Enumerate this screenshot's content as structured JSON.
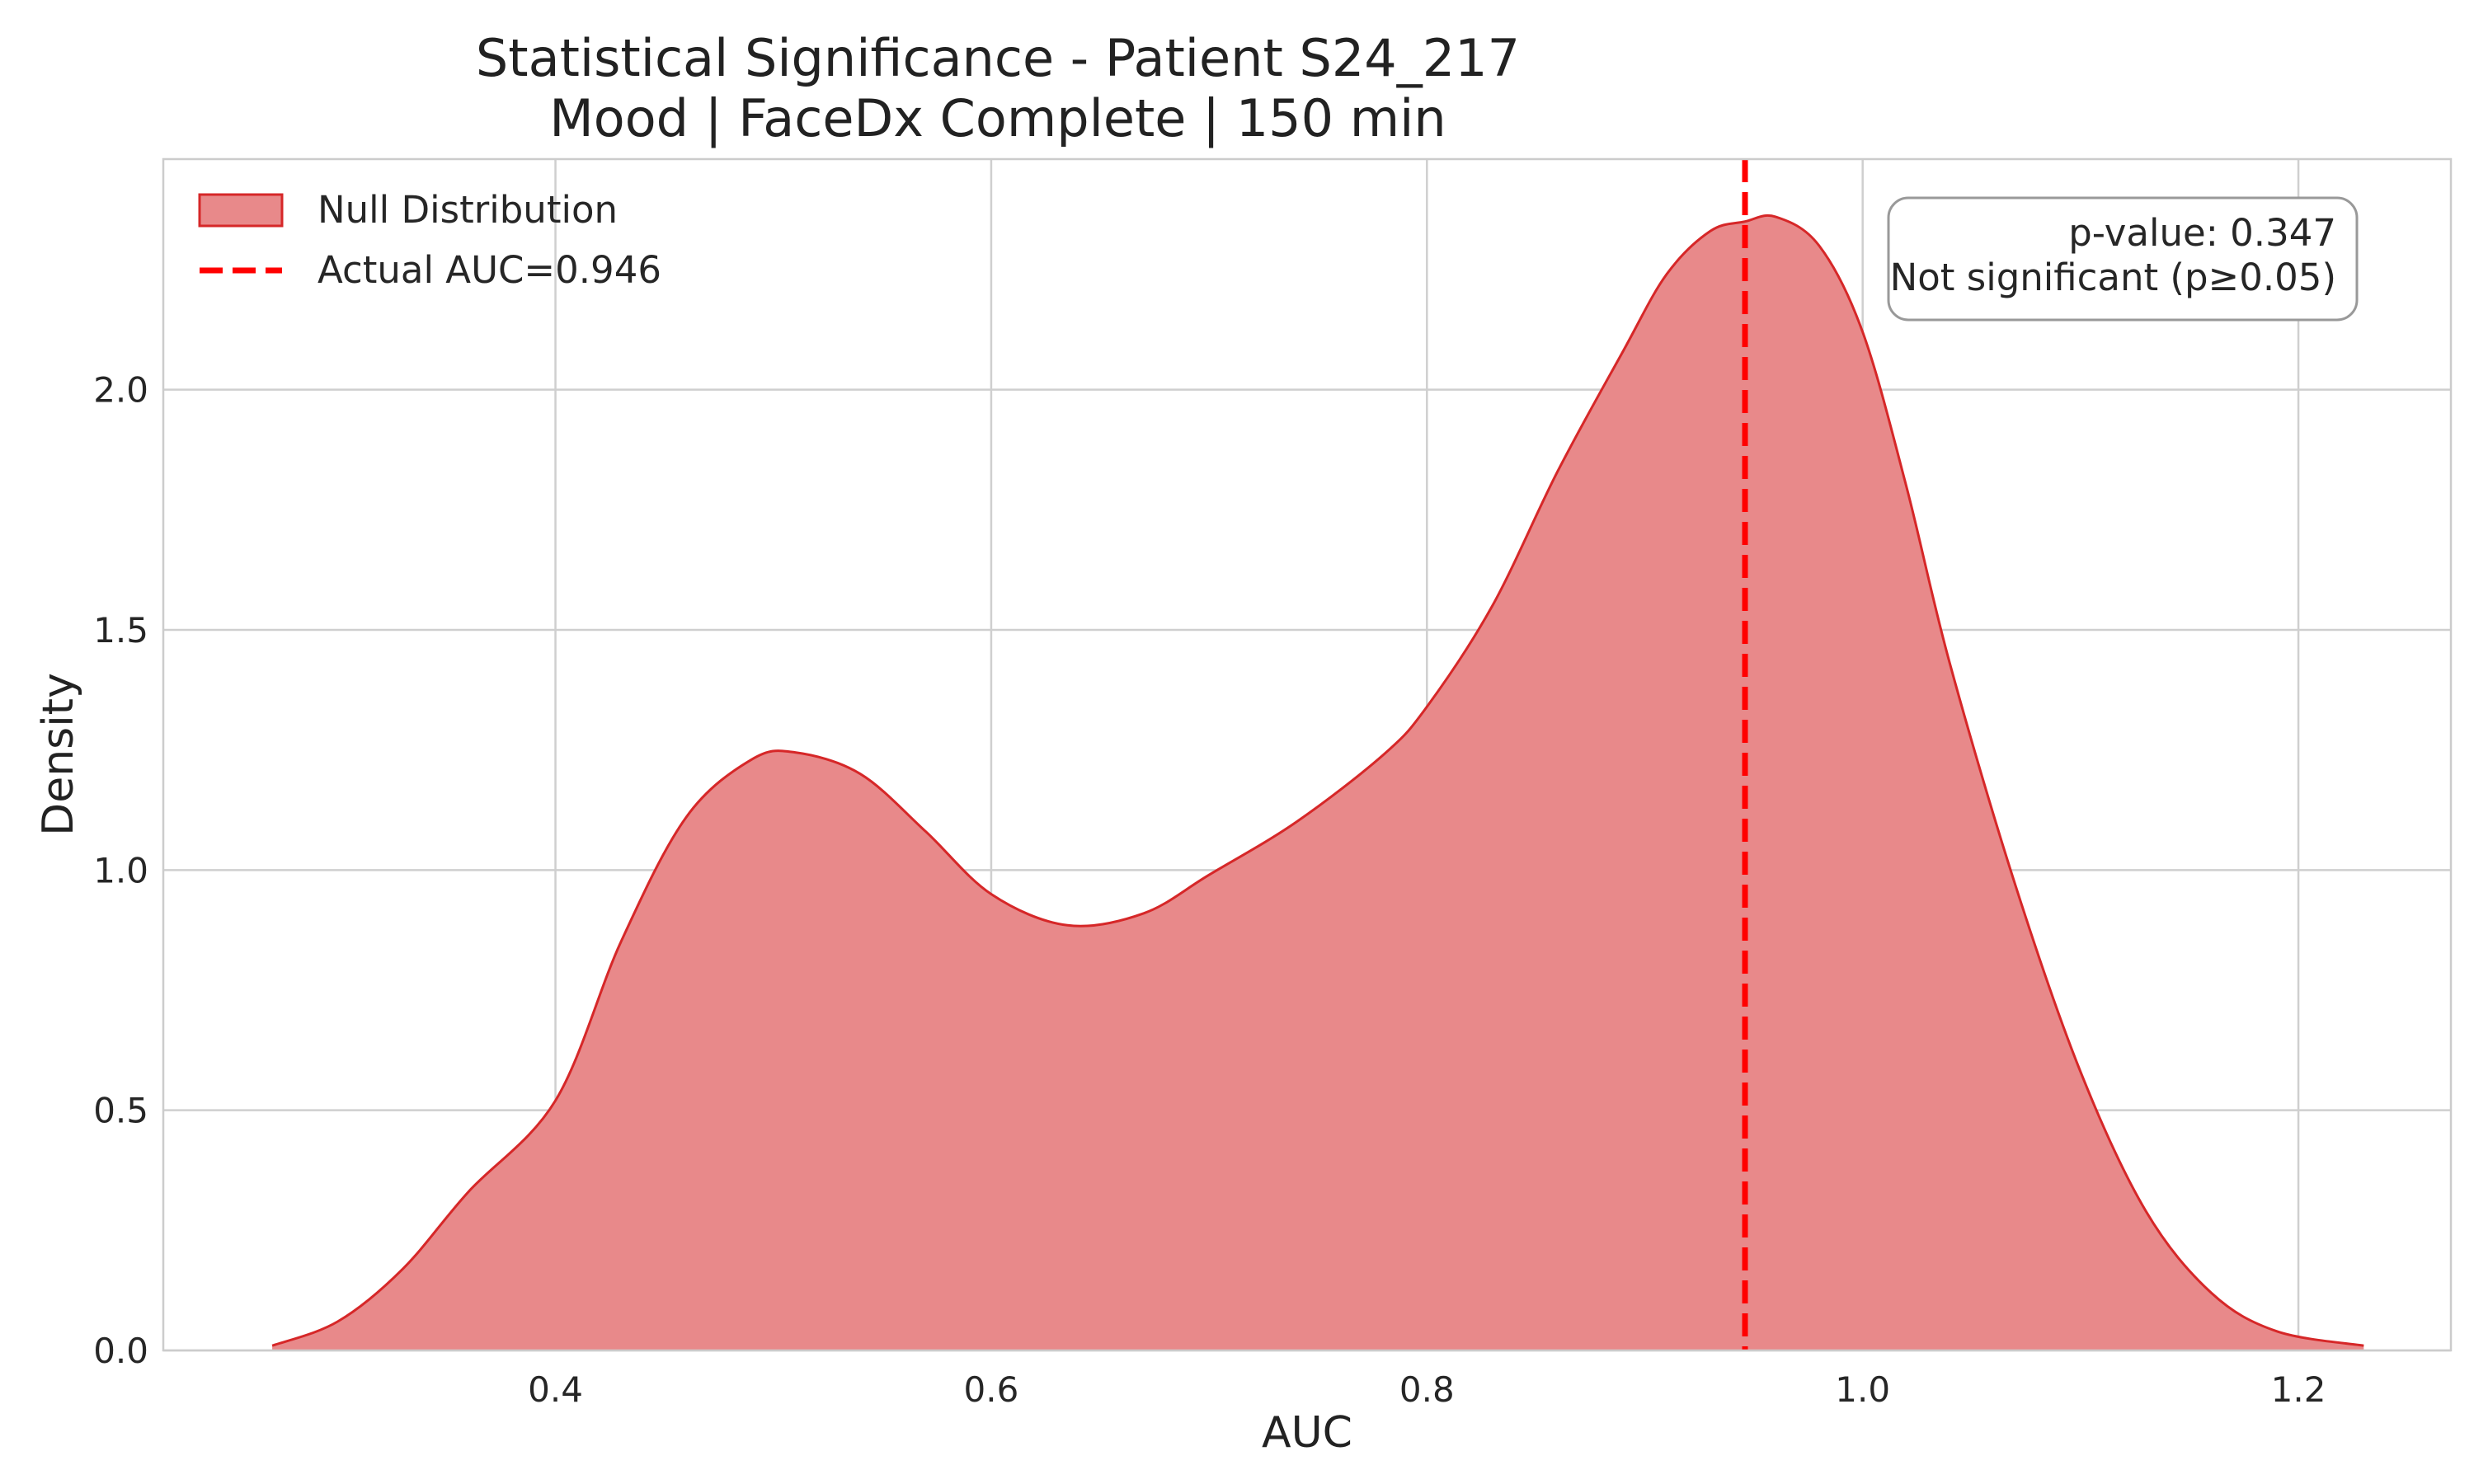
{
  "chart_data": {
    "type": "area",
    "title": "Statistical Significance - Patient S24_217",
    "subtitle": "Mood | FaceDx Complete | 150 min",
    "xlabel": "AUC",
    "ylabel": "Density",
    "xlim": [
      0.22,
      1.27
    ],
    "ylim": [
      0.0,
      2.48
    ],
    "xticks": [
      0.4,
      0.6,
      0.8,
      1.0,
      1.2
    ],
    "yticks": [
      0.0,
      0.5,
      1.0,
      1.5,
      2.0
    ],
    "xtick_labels": [
      "0.4",
      "0.6",
      "0.8",
      "1.0",
      "1.2"
    ],
    "ytick_labels": [
      "0.0",
      "0.5",
      "1.0",
      "1.5",
      "2.0"
    ],
    "grid": true,
    "legend_position": "top-left",
    "series": [
      {
        "name": "Null Distribution",
        "color": "#d62728",
        "fill_color": "#e8898a",
        "x": [
          0.27,
          0.3,
          0.33,
          0.36,
          0.4,
          0.43,
          0.46,
          0.49,
          0.51,
          0.54,
          0.57,
          0.6,
          0.635,
          0.67,
          0.7,
          0.74,
          0.78,
          0.8,
          0.83,
          0.86,
          0.89,
          0.91,
          0.93,
          0.946,
          0.96,
          0.98,
          1.0,
          1.02,
          1.04,
          1.07,
          1.1,
          1.13,
          1.16,
          1.19,
          1.23
        ],
        "y": [
          0.01,
          0.06,
          0.17,
          0.33,
          0.52,
          0.85,
          1.11,
          1.23,
          1.245,
          1.2,
          1.08,
          0.95,
          0.885,
          0.91,
          0.99,
          1.1,
          1.24,
          1.34,
          1.55,
          1.83,
          2.08,
          2.24,
          2.33,
          2.35,
          2.36,
          2.3,
          2.12,
          1.8,
          1.43,
          0.97,
          0.58,
          0.29,
          0.12,
          0.04,
          0.01
        ]
      }
    ],
    "reference_line": {
      "name": "Actual AUC=0.946",
      "x": 0.946,
      "color": "#ff0000",
      "style": "dashed"
    },
    "annotation": {
      "line1": "p-value: 0.347",
      "line2": "Not significant (p≥0.05)"
    }
  }
}
